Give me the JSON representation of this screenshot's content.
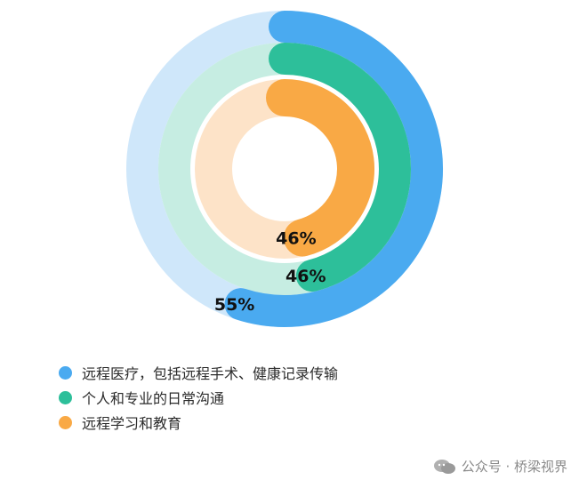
{
  "chart_data": {
    "type": "radial-bar",
    "unit": "%",
    "max": 100,
    "series": [
      {
        "name": "远程医疗，包括远程手术、健康记录传输",
        "value": 55,
        "label": "55%",
        "color": "#4aaaf0",
        "track_color": "#cfe7fa"
      },
      {
        "name": "个人和专业的日常沟通",
        "value": 46,
        "label": "46%",
        "color": "#2dbf9a",
        "track_color": "#c6ede2"
      },
      {
        "name": "远程学习和教育",
        "value": 46,
        "label": "46%",
        "color": "#f9a945",
        "track_color": "#fde3c8"
      }
    ]
  },
  "watermark": {
    "text": "公众号 · 桥梁视界"
  }
}
